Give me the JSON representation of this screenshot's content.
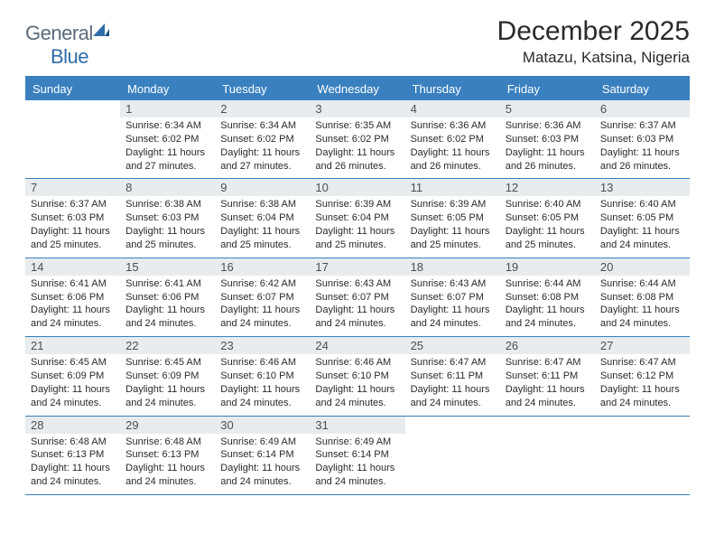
{
  "brand": {
    "part1": "General",
    "part2": "Blue"
  },
  "title": "December 2025",
  "location": "Matazu, Katsina, Nigeria",
  "colors": {
    "header_bg": "#3a80bf",
    "header_text": "#ffffff",
    "daynum_bg": "#e9ecef",
    "border": "#3a80bf",
    "logo_gray": "#5a6b7a",
    "logo_blue": "#2f6ca8"
  },
  "day_headers": [
    "Sunday",
    "Monday",
    "Tuesday",
    "Wednesday",
    "Thursday",
    "Friday",
    "Saturday"
  ],
  "weeks": [
    [
      {
        "empty": true,
        "n": "",
        "sr": "",
        "ss": "",
        "dh": "",
        "dm": ""
      },
      {
        "n": "1",
        "sr": "6:34 AM",
        "ss": "6:02 PM",
        "dh": "11",
        "dm": "27"
      },
      {
        "n": "2",
        "sr": "6:34 AM",
        "ss": "6:02 PM",
        "dh": "11",
        "dm": "27"
      },
      {
        "n": "3",
        "sr": "6:35 AM",
        "ss": "6:02 PM",
        "dh": "11",
        "dm": "26"
      },
      {
        "n": "4",
        "sr": "6:36 AM",
        "ss": "6:02 PM",
        "dh": "11",
        "dm": "26"
      },
      {
        "n": "5",
        "sr": "6:36 AM",
        "ss": "6:03 PM",
        "dh": "11",
        "dm": "26"
      },
      {
        "n": "6",
        "sr": "6:37 AM",
        "ss": "6:03 PM",
        "dh": "11",
        "dm": "26"
      }
    ],
    [
      {
        "n": "7",
        "sr": "6:37 AM",
        "ss": "6:03 PM",
        "dh": "11",
        "dm": "25"
      },
      {
        "n": "8",
        "sr": "6:38 AM",
        "ss": "6:03 PM",
        "dh": "11",
        "dm": "25"
      },
      {
        "n": "9",
        "sr": "6:38 AM",
        "ss": "6:04 PM",
        "dh": "11",
        "dm": "25"
      },
      {
        "n": "10",
        "sr": "6:39 AM",
        "ss": "6:04 PM",
        "dh": "11",
        "dm": "25"
      },
      {
        "n": "11",
        "sr": "6:39 AM",
        "ss": "6:05 PM",
        "dh": "11",
        "dm": "25"
      },
      {
        "n": "12",
        "sr": "6:40 AM",
        "ss": "6:05 PM",
        "dh": "11",
        "dm": "25"
      },
      {
        "n": "13",
        "sr": "6:40 AM",
        "ss": "6:05 PM",
        "dh": "11",
        "dm": "24"
      }
    ],
    [
      {
        "n": "14",
        "sr": "6:41 AM",
        "ss": "6:06 PM",
        "dh": "11",
        "dm": "24"
      },
      {
        "n": "15",
        "sr": "6:41 AM",
        "ss": "6:06 PM",
        "dh": "11",
        "dm": "24"
      },
      {
        "n": "16",
        "sr": "6:42 AM",
        "ss": "6:07 PM",
        "dh": "11",
        "dm": "24"
      },
      {
        "n": "17",
        "sr": "6:43 AM",
        "ss": "6:07 PM",
        "dh": "11",
        "dm": "24"
      },
      {
        "n": "18",
        "sr": "6:43 AM",
        "ss": "6:07 PM",
        "dh": "11",
        "dm": "24"
      },
      {
        "n": "19",
        "sr": "6:44 AM",
        "ss": "6:08 PM",
        "dh": "11",
        "dm": "24"
      },
      {
        "n": "20",
        "sr": "6:44 AM",
        "ss": "6:08 PM",
        "dh": "11",
        "dm": "24"
      }
    ],
    [
      {
        "n": "21",
        "sr": "6:45 AM",
        "ss": "6:09 PM",
        "dh": "11",
        "dm": "24"
      },
      {
        "n": "22",
        "sr": "6:45 AM",
        "ss": "6:09 PM",
        "dh": "11",
        "dm": "24"
      },
      {
        "n": "23",
        "sr": "6:46 AM",
        "ss": "6:10 PM",
        "dh": "11",
        "dm": "24"
      },
      {
        "n": "24",
        "sr": "6:46 AM",
        "ss": "6:10 PM",
        "dh": "11",
        "dm": "24"
      },
      {
        "n": "25",
        "sr": "6:47 AM",
        "ss": "6:11 PM",
        "dh": "11",
        "dm": "24"
      },
      {
        "n": "26",
        "sr": "6:47 AM",
        "ss": "6:11 PM",
        "dh": "11",
        "dm": "24"
      },
      {
        "n": "27",
        "sr": "6:47 AM",
        "ss": "6:12 PM",
        "dh": "11",
        "dm": "24"
      }
    ],
    [
      {
        "n": "28",
        "sr": "6:48 AM",
        "ss": "6:13 PM",
        "dh": "11",
        "dm": "24"
      },
      {
        "n": "29",
        "sr": "6:48 AM",
        "ss": "6:13 PM",
        "dh": "11",
        "dm": "24"
      },
      {
        "n": "30",
        "sr": "6:49 AM",
        "ss": "6:14 PM",
        "dh": "11",
        "dm": "24"
      },
      {
        "n": "31",
        "sr": "6:49 AM",
        "ss": "6:14 PM",
        "dh": "11",
        "dm": "24"
      },
      {
        "empty": true,
        "n": "",
        "sr": "",
        "ss": "",
        "dh": "",
        "dm": ""
      },
      {
        "empty": true,
        "n": "",
        "sr": "",
        "ss": "",
        "dh": "",
        "dm": ""
      },
      {
        "empty": true,
        "n": "",
        "sr": "",
        "ss": "",
        "dh": "",
        "dm": ""
      }
    ]
  ],
  "labels": {
    "sunrise_prefix": "Sunrise: ",
    "sunset_prefix": "Sunset: ",
    "daylight_prefix": "Daylight: ",
    "hours_word": " hours",
    "and_word": "and ",
    "minutes_word": " minutes."
  }
}
